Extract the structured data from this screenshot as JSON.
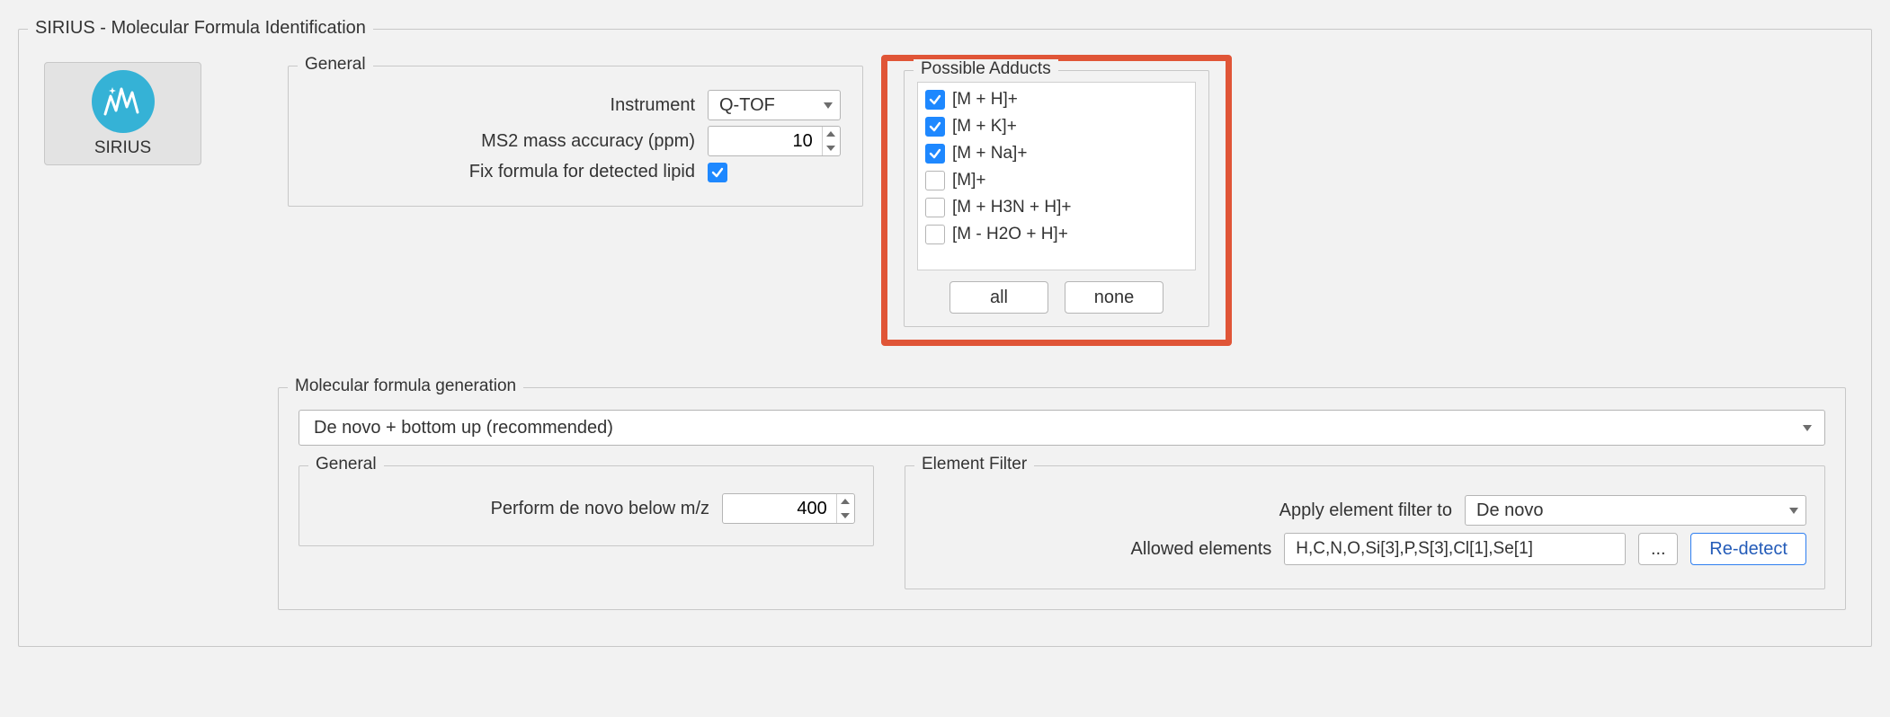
{
  "colors": {
    "page_bg": "#f2f2f2",
    "panel_border": "#c8c8c8",
    "input_border": "#b5b5b5",
    "highlight_border": "#e05537",
    "accent_blue": "#1e88ff",
    "sirius_circle": "#35b2d6",
    "primary_btn_border": "#2f7ff0"
  },
  "outer": {
    "title": "SIRIUS - Molecular Formula Identification"
  },
  "sirius_block": {
    "label": "SIRIUS"
  },
  "general": {
    "legend": "General",
    "instrument_label": "Instrument",
    "instrument_value": "Q-TOF",
    "ms2_label": "MS2 mass accuracy (ppm)",
    "ms2_value": "10",
    "lipid_label": "Fix formula for detected lipid",
    "lipid_checked": true
  },
  "adducts": {
    "legend": "Possible Adducts",
    "items": [
      {
        "label": "[M + H]+",
        "checked": true
      },
      {
        "label": "[M + K]+",
        "checked": true
      },
      {
        "label": "[M + Na]+",
        "checked": true
      },
      {
        "label": "[M]+",
        "checked": false
      },
      {
        "label": "[M + H3N + H]+",
        "checked": false
      },
      {
        "label": "[M - H2O + H]+",
        "checked": false
      }
    ],
    "btn_all": "all",
    "btn_none": "none"
  },
  "mfg": {
    "legend": "Molecular formula generation",
    "strategy": "De novo + bottom up (recommended)",
    "general2": {
      "legend": "General",
      "denovo_label": "Perform de novo below m/z",
      "denovo_value": "400"
    },
    "elfilter": {
      "legend": "Element Filter",
      "apply_label": "Apply element filter to",
      "apply_value": "De novo",
      "allowed_label": "Allowed elements",
      "allowed_value": "H,C,N,O,Si[3],P,S[3],Cl[1],Se[1]",
      "more_btn": "...",
      "redetect_btn": "Re-detect"
    }
  }
}
